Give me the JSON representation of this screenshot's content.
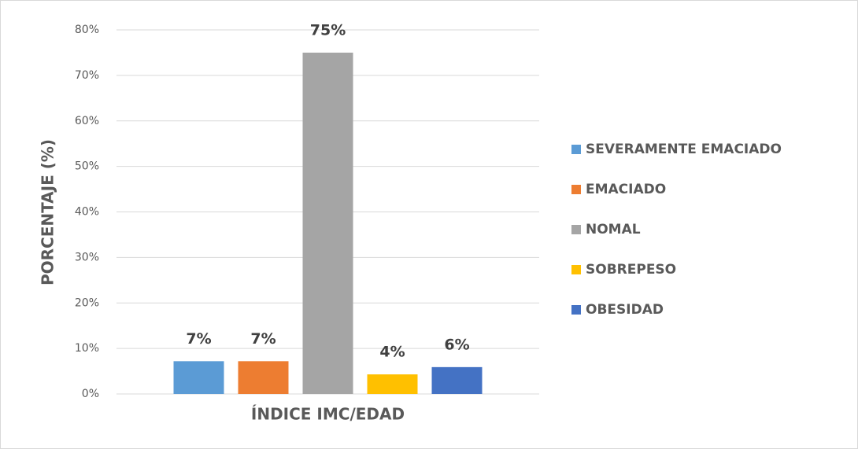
{
  "chart_data": {
    "type": "bar",
    "y_label": "PORCENTAJE (%)",
    "categories": [
      "ÍNDICE IMC/EDAD"
    ],
    "series": [
      {
        "name": "SEVERAMENTE EMACIADO",
        "color": "#5b9bd5",
        "values": [
          7.2
        ],
        "value_labels": [
          "7%"
        ]
      },
      {
        "name": "EMACIADO",
        "color": "#ed7d31",
        "values": [
          7.2
        ],
        "value_labels": [
          "7%"
        ]
      },
      {
        "name": "NOMAL",
        "color": "#a5a5a5",
        "values": [
          75
        ],
        "value_labels": [
          "75%"
        ]
      },
      {
        "name": "SOBREPESO",
        "color": "#ffc000",
        "values": [
          4.3
        ],
        "value_labels": [
          "4%"
        ]
      },
      {
        "name": "OBESIDAD",
        "color": "#4472c4",
        "values": [
          5.9
        ],
        "value_labels": [
          "6%"
        ]
      }
    ],
    "ylim": [
      0,
      80
    ],
    "yticks": [
      {
        "value": 0,
        "label": "0%"
      },
      {
        "value": 10,
        "label": "10%"
      },
      {
        "value": 20,
        "label": "20%"
      },
      {
        "value": 30,
        "label": "30%"
      },
      {
        "value": 40,
        "label": "40%"
      },
      {
        "value": 50,
        "label": "50%"
      },
      {
        "value": 60,
        "label": "60%"
      },
      {
        "value": 70,
        "label": "70%"
      },
      {
        "value": 80,
        "label": "80%"
      }
    ],
    "grid": true,
    "legend": "right"
  }
}
